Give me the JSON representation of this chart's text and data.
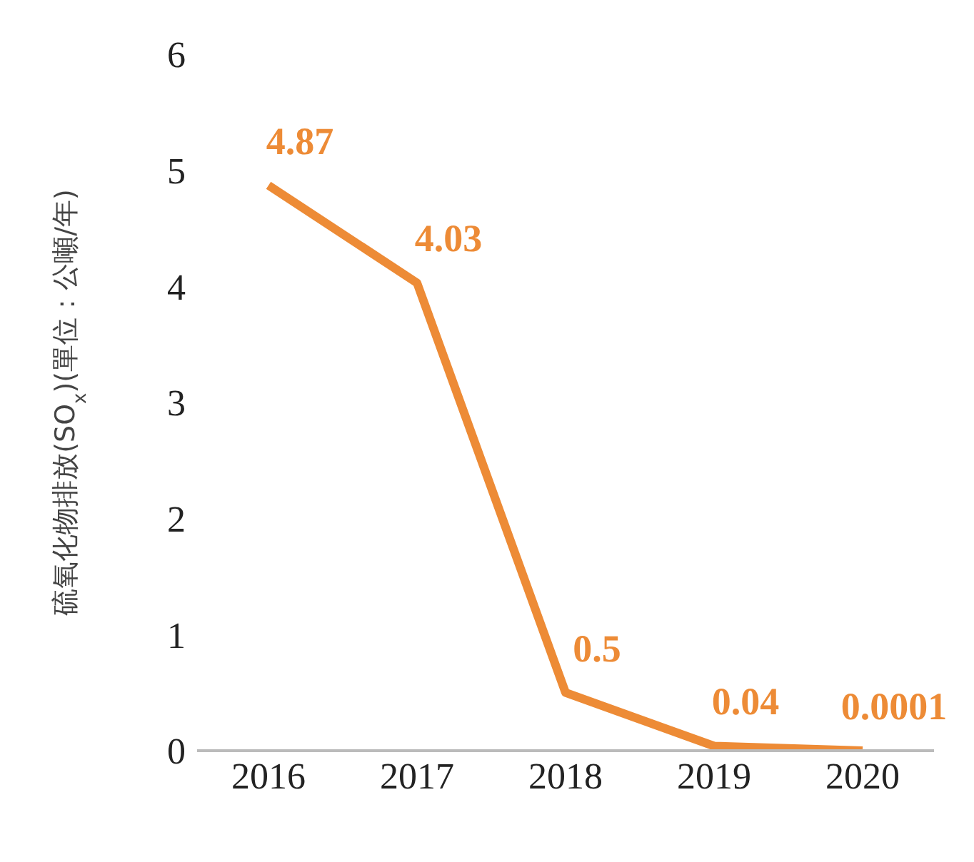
{
  "chart_data": {
    "type": "line",
    "ylabel": "硫氧化物排放(SO$_{x}$)(單位：公噸/年)",
    "categories": [
      "2016",
      "2017",
      "2018",
      "2019",
      "2020"
    ],
    "series": [
      {
        "color": "#ed8b36",
        "values": [
          4.87,
          4.03,
          0.5,
          0.04,
          0.0001
        ]
      }
    ],
    "ylim": [
      0,
      6
    ],
    "yticks": [
      0,
      1,
      2,
      3,
      4,
      5,
      6
    ],
    "grid": false,
    "legend": false,
    "marker": "none",
    "line_style": "solid",
    "data_labels": true
  }
}
